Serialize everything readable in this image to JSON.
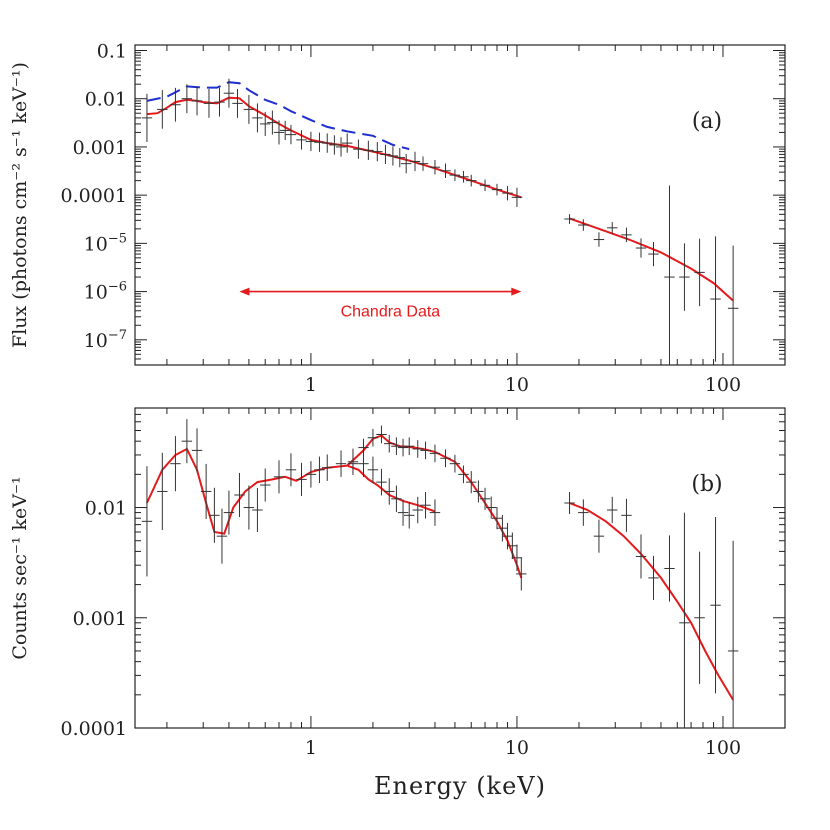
{
  "colors": {
    "axes": "#222222",
    "data": "#333333",
    "model": "#e41a1c",
    "dashed": "#1f2fd0",
    "annotation": "#e41a1c"
  },
  "chart_data": [
    {
      "type": "line",
      "panel_label": "(a)",
      "xlabel": "",
      "ylabel": "Flux (photons cm⁻² s⁻¹ keV⁻¹)",
      "xscale": "log",
      "yscale": "log",
      "xlim": [
        0.14,
        200
      ],
      "ylim": [
        3e-08,
        0.13
      ],
      "x_ticks": [
        {
          "value": 1,
          "label": "1"
        },
        {
          "value": 10,
          "label": "10"
        },
        {
          "value": 100,
          "label": "100"
        }
      ],
      "y_ticks": [
        {
          "value": 0.1,
          "label": "0.1",
          "sup": ""
        },
        {
          "value": 0.01,
          "label": "0.01",
          "sup": ""
        },
        {
          "value": 0.001,
          "label": "0.001",
          "sup": ""
        },
        {
          "value": 0.0001,
          "label": "0.0001",
          "sup": ""
        },
        {
          "value": 1e-05,
          "label": "10",
          "sup": "−5"
        },
        {
          "value": 1e-06,
          "label": "10",
          "sup": "−6"
        },
        {
          "value": 1e-07,
          "label": "10",
          "sup": "−7"
        }
      ],
      "annotation": {
        "text": "Chandra Data",
        "x_from": 0.45,
        "x_to": 10.5,
        "y": 1e-06
      },
      "series": [
        {
          "style": "dashed",
          "x": [
            0.16,
            0.2,
            0.25,
            0.3,
            0.35,
            0.4,
            0.45,
            0.5,
            0.6,
            0.7,
            0.8,
            1.0,
            1.2,
            1.5,
            2.0,
            2.5,
            3.0
          ],
          "y": [
            0.009,
            0.011,
            0.018,
            0.017,
            0.017,
            0.022,
            0.021,
            0.015,
            0.0095,
            0.0075,
            0.0055,
            0.0036,
            0.0026,
            0.0021,
            0.0017,
            0.0011,
            0.0009
          ]
        },
        {
          "style": "model",
          "x": [
            0.16,
            0.18,
            0.2,
            0.22,
            0.25,
            0.28,
            0.3,
            0.35,
            0.4,
            0.45,
            0.5,
            0.6,
            0.7,
            0.8,
            1.0,
            1.2,
            1.5,
            2.0,
            2.5,
            3.0,
            4.0,
            5.0,
            6.0,
            8.0,
            10.5
          ],
          "y": [
            0.0048,
            0.005,
            0.0065,
            0.0085,
            0.0095,
            0.009,
            0.0085,
            0.008,
            0.0105,
            0.0102,
            0.007,
            0.0045,
            0.003,
            0.0022,
            0.0014,
            0.0012,
            0.00105,
            0.0008,
            0.00064,
            0.00052,
            0.00036,
            0.00026,
            0.0002,
            0.00013,
            9e-05
          ]
        },
        {
          "style": "model",
          "x": [
            18,
            25,
            35,
            50,
            70,
            90,
            112
          ],
          "y": [
            3.3e-05,
            2e-05,
            1.2e-05,
            6.5e-06,
            3e-06,
            1.5e-06,
            6.5e-07
          ]
        },
        {
          "style": "data",
          "x": [
            0.16,
            0.19,
            0.22,
            0.25,
            0.28,
            0.32,
            0.36,
            0.4,
            0.44,
            0.5,
            0.55,
            0.6,
            0.65,
            0.7,
            0.75,
            0.8,
            0.9,
            1.0,
            1.1,
            1.2,
            1.3,
            1.4,
            1.5,
            1.7,
            1.9,
            2.1,
            2.3,
            2.5,
            2.7,
            2.9,
            3.2,
            3.5,
            4.0,
            4.5,
            5.0,
            5.5,
            6.0,
            7.0,
            8.0,
            9.0,
            10.0
          ],
          "y": [
            0.004,
            0.006,
            0.0075,
            0.01,
            0.009,
            0.008,
            0.0085,
            0.013,
            0.008,
            0.006,
            0.004,
            0.003,
            0.0032,
            0.002,
            0.0022,
            0.0018,
            0.0014,
            0.0013,
            0.00125,
            0.0012,
            0.0011,
            0.001,
            0.0012,
            0.0009,
            0.00085,
            0.0008,
            0.0007,
            0.00065,
            0.0006,
            0.00045,
            0.0005,
            0.00045,
            0.00038,
            0.00032,
            0.00026,
            0.00024,
            0.0002,
            0.00016,
            0.00013,
            0.00011,
            9e-05
          ],
          "yerr": [
            0.5,
            0.4,
            0.35,
            0.3,
            0.3,
            0.3,
            0.3,
            0.3,
            0.3,
            0.3,
            0.3,
            0.25,
            0.25,
            0.25,
            0.2,
            0.2,
            0.2,
            0.2,
            0.2,
            0.2,
            0.2,
            0.2,
            0.2,
            0.2,
            0.2,
            0.2,
            0.2,
            0.2,
            0.2,
            0.2,
            0.2,
            0.15,
            0.15,
            0.15,
            0.12,
            0.12,
            0.12,
            0.12,
            0.12,
            0.15,
            0.2
          ]
        },
        {
          "style": "data",
          "x": [
            18,
            21,
            25,
            29,
            34,
            40,
            46,
            55,
            65,
            77,
            92,
            112
          ],
          "y": [
            3.2e-05,
            2.4e-05,
            1.2e-05,
            2.1e-05,
            1.5e-05,
            8e-06,
            6e-06,
            2e-06,
            2e-06,
            2.5e-06,
            7e-07,
            4.5e-07
          ],
          "yerr": [
            0.1,
            0.12,
            0.15,
            0.12,
            0.15,
            0.2,
            0.25,
            1.9,
            0.7,
            0.7,
            1.3,
            1.3
          ]
        }
      ]
    },
    {
      "type": "line",
      "panel_label": "(b)",
      "xlabel": "Energy (keV)",
      "ylabel": "Counts sec⁻¹ keV⁻¹",
      "xscale": "log",
      "yscale": "log",
      "xlim": [
        0.14,
        200
      ],
      "ylim": [
        0.0001,
        0.08
      ],
      "x_ticks": [
        {
          "value": 1,
          "label": "1"
        },
        {
          "value": 10,
          "label": "10"
        },
        {
          "value": 100,
          "label": "100"
        }
      ],
      "y_ticks": [
        {
          "value": 0.01,
          "label": "0.01",
          "sup": ""
        },
        {
          "value": 0.001,
          "label": "0.001",
          "sup": ""
        },
        {
          "value": 0.0001,
          "label": "0.0001",
          "sup": ""
        }
      ],
      "series": [
        {
          "style": "model",
          "x": [
            0.16,
            0.19,
            0.22,
            0.25,
            0.28,
            0.31,
            0.34,
            0.38,
            0.42,
            0.48,
            0.55,
            0.65,
            0.75,
            0.85,
            1.0,
            1.2,
            1.5,
            1.7,
            1.9,
            2.1,
            2.4,
            2.8,
            3.3,
            4.0
          ],
          "y": [
            0.011,
            0.022,
            0.03,
            0.034,
            0.022,
            0.011,
            0.006,
            0.0058,
            0.01,
            0.014,
            0.017,
            0.018,
            0.019,
            0.0175,
            0.021,
            0.023,
            0.024,
            0.022,
            0.018,
            0.016,
            0.013,
            0.0115,
            0.0105,
            0.0092
          ]
        },
        {
          "style": "model",
          "x": [
            1.5,
            1.8,
            2.0,
            2.2,
            2.4,
            2.7,
            3.0,
            3.5,
            4.0,
            5.0,
            6.0,
            7.0,
            8.0,
            9.0,
            10.0,
            10.5
          ],
          "y": [
            0.024,
            0.033,
            0.042,
            0.045,
            0.039,
            0.036,
            0.0355,
            0.034,
            0.032,
            0.026,
            0.017,
            0.011,
            0.0075,
            0.005,
            0.003,
            0.0023
          ]
        },
        {
          "style": "model",
          "x": [
            18,
            22,
            27,
            33,
            40,
            50,
            60,
            70,
            82,
            95,
            112
          ],
          "y": [
            0.011,
            0.0095,
            0.0075,
            0.0055,
            0.0038,
            0.0023,
            0.0014,
            0.0009,
            0.0005,
            0.0003,
            0.00018
          ]
        },
        {
          "style": "data",
          "x": [
            0.16,
            0.19,
            0.22,
            0.25,
            0.28,
            0.31,
            0.34,
            0.37,
            0.4,
            0.45,
            0.5,
            0.55,
            0.6,
            0.7,
            0.8,
            0.9,
            1.0,
            1.1,
            1.2,
            1.4,
            1.6,
            1.8,
            2.0,
            2.2,
            2.4,
            2.6,
            2.8,
            3.0,
            3.3,
            3.6,
            4.0
          ],
          "y": [
            0.0075,
            0.014,
            0.025,
            0.04,
            0.033,
            0.014,
            0.0085,
            0.0055,
            0.009,
            0.013,
            0.01,
            0.0095,
            0.016,
            0.019,
            0.022,
            0.018,
            0.02,
            0.022,
            0.023,
            0.025,
            0.026,
            0.025,
            0.022,
            0.017,
            0.014,
            0.012,
            0.009,
            0.0085,
            0.0095,
            0.0105,
            0.009
          ],
          "yerr": [
            0.5,
            0.35,
            0.25,
            0.2,
            0.2,
            0.25,
            0.25,
            0.25,
            0.2,
            0.2,
            0.2,
            0.2,
            0.15,
            0.15,
            0.15,
            0.15,
            0.12,
            0.12,
            0.12,
            0.12,
            0.12,
            0.12,
            0.12,
            0.12,
            0.12,
            0.12,
            0.12,
            0.12,
            0.12,
            0.12,
            0.12
          ]
        },
        {
          "style": "data",
          "x": [
            1.6,
            1.8,
            2.0,
            2.2,
            2.4,
            2.6,
            2.8,
            3.0,
            3.3,
            3.6,
            4.0,
            4.5,
            5.0,
            5.5,
            6.0,
            6.5,
            7.0,
            7.5,
            8.0,
            8.5,
            9.0,
            9.5,
            10.0,
            10.5
          ],
          "y": [
            0.025,
            0.035,
            0.043,
            0.046,
            0.038,
            0.036,
            0.035,
            0.036,
            0.034,
            0.033,
            0.031,
            0.028,
            0.025,
            0.02,
            0.017,
            0.014,
            0.012,
            0.01,
            0.008,
            0.0065,
            0.0055,
            0.0045,
            0.0035,
            0.0025
          ],
          "yerr": [
            0.08,
            0.08,
            0.08,
            0.08,
            0.08,
            0.08,
            0.08,
            0.08,
            0.08,
            0.08,
            0.08,
            0.08,
            0.08,
            0.08,
            0.1,
            0.1,
            0.1,
            0.1,
            0.1,
            0.12,
            0.12,
            0.12,
            0.12,
            0.15
          ]
        },
        {
          "style": "data",
          "x": [
            18,
            21,
            25,
            29,
            34,
            40,
            46,
            55,
            65,
            77,
            92,
            112
          ],
          "y": [
            0.011,
            0.009,
            0.0055,
            0.0095,
            0.0085,
            0.0036,
            0.0023,
            0.0028,
            0.0009,
            0.001,
            0.0013,
            0.0005
          ],
          "yerr": [
            0.1,
            0.12,
            0.15,
            0.12,
            0.15,
            0.2,
            0.2,
            0.3,
            1.0,
            0.6,
            0.8,
            1.0
          ]
        }
      ]
    }
  ]
}
